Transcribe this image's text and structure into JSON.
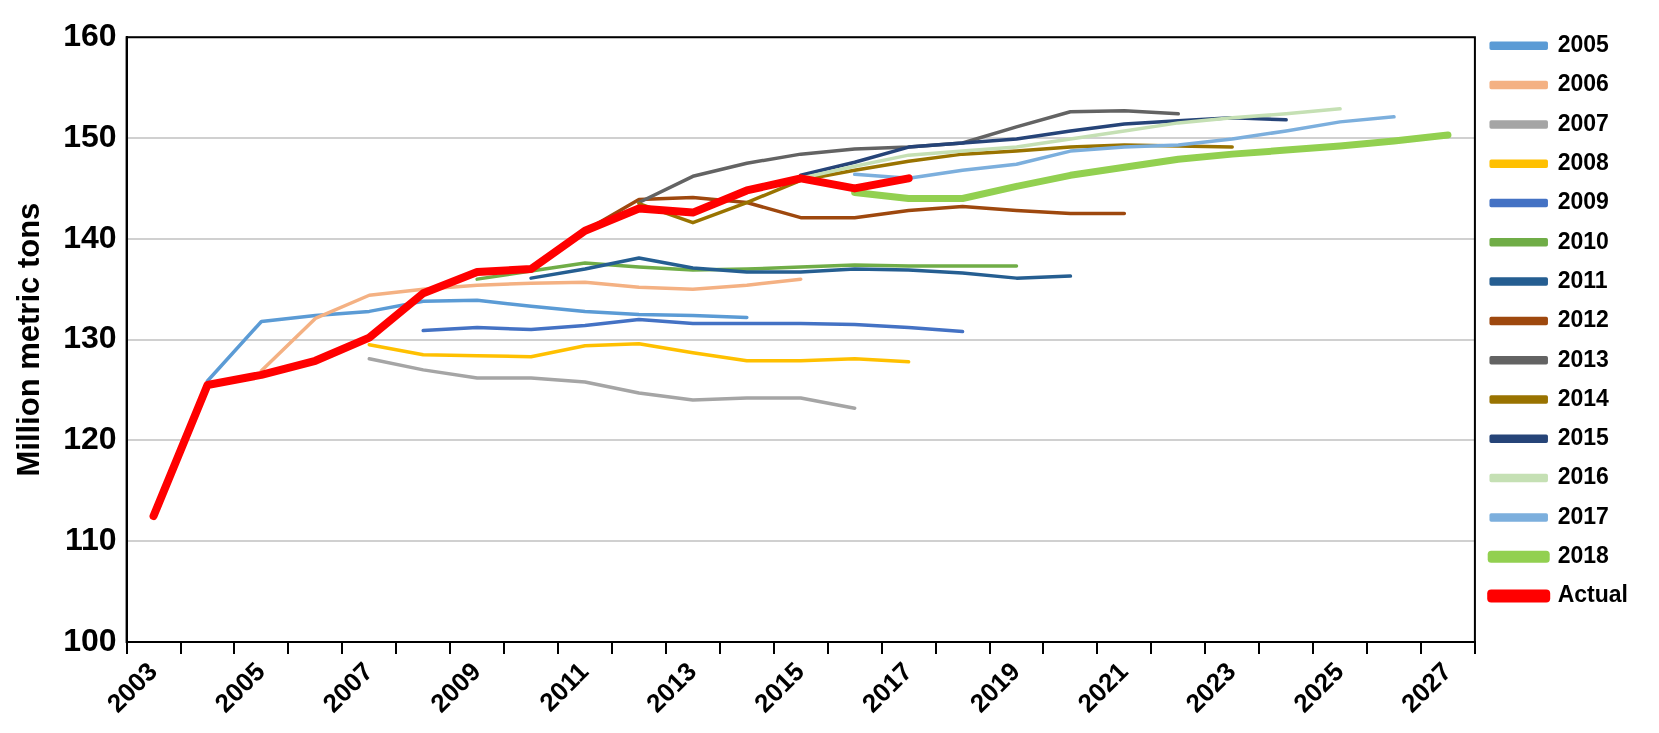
{
  "chart_data": {
    "type": "line",
    "ylabel": "Million metric tons",
    "categories": [
      "2003",
      null,
      "2005",
      null,
      "2007",
      null,
      "2009",
      null,
      "2011",
      null,
      "2013",
      null,
      "2015",
      null,
      "2017",
      null,
      "2019",
      null,
      "2021",
      null,
      "2023",
      null,
      "2025",
      null,
      "2027"
    ],
    "series": [
      {
        "name": "2005",
        "color": "#5b9bd5",
        "values": [
          null,
          125.9,
          131.8,
          132.4,
          132.8,
          133.8,
          133.9,
          133.3,
          132.8,
          132.5,
          132.4,
          132.2,
          null,
          null,
          null,
          null,
          null,
          null,
          null,
          null,
          null,
          null,
          null,
          null,
          null
        ]
      },
      {
        "name": "2006",
        "color": "#f4b183",
        "values": [
          null,
          null,
          126.9,
          132.1,
          134.4,
          135.0,
          135.4,
          135.6,
          135.7,
          135.2,
          135.0,
          135.4,
          136.0,
          null,
          null,
          null,
          null,
          null,
          null,
          null,
          null,
          null,
          null,
          null,
          null
        ]
      },
      {
        "name": "2007",
        "color": "#a5a5a5",
        "values": [
          null,
          null,
          null,
          null,
          128.1,
          127.0,
          126.2,
          126.2,
          125.8,
          124.7,
          124.0,
          124.2,
          124.2,
          123.2,
          null,
          null,
          null,
          null,
          null,
          null,
          null,
          null,
          null,
          null,
          null
        ]
      },
      {
        "name": "2008",
        "color": "#ffc000",
        "values": [
          null,
          null,
          null,
          null,
          129.5,
          128.5,
          128.4,
          128.3,
          129.4,
          129.6,
          128.7,
          127.9,
          127.9,
          128.1,
          127.8,
          null,
          null,
          null,
          null,
          null,
          null,
          null,
          null,
          null,
          null
        ]
      },
      {
        "name": "2009",
        "color": "#4472c4",
        "values": [
          null,
          null,
          null,
          null,
          null,
          130.9,
          131.2,
          131.0,
          131.4,
          132.0,
          131.6,
          131.6,
          131.6,
          131.5,
          131.2,
          130.8,
          null,
          null,
          null,
          null,
          null,
          null,
          null,
          null,
          null
        ]
      },
      {
        "name": "2010",
        "color": "#70ad47",
        "values": [
          null,
          null,
          null,
          null,
          null,
          null,
          136.0,
          136.8,
          137.6,
          137.2,
          136.9,
          137.0,
          137.2,
          137.4,
          137.3,
          137.3,
          137.3,
          null,
          null,
          null,
          null,
          null,
          null,
          null,
          null
        ]
      },
      {
        "name": "2011",
        "color": "#255e91",
        "values": [
          null,
          null,
          null,
          null,
          null,
          null,
          null,
          136.1,
          137.0,
          138.1,
          137.1,
          136.7,
          136.7,
          137.0,
          136.9,
          136.6,
          136.1,
          136.3,
          null,
          null,
          null,
          null,
          null,
          null,
          null
        ]
      },
      {
        "name": "2012",
        "color": "#9e480e",
        "values": [
          null,
          null,
          null,
          null,
          null,
          null,
          null,
          null,
          140.8,
          143.9,
          144.1,
          143.6,
          142.1,
          142.1,
          142.8,
          143.2,
          142.8,
          142.5,
          142.5,
          null,
          null,
          null,
          null,
          null,
          null
        ]
      },
      {
        "name": "2013",
        "color": "#636363",
        "values": [
          null,
          null,
          null,
          null,
          null,
          null,
          null,
          null,
          null,
          143.6,
          146.2,
          147.5,
          148.4,
          148.9,
          149.1,
          149.5,
          151.1,
          152.6,
          152.7,
          152.4,
          null,
          null,
          null,
          null,
          null
        ]
      },
      {
        "name": "2014",
        "color": "#997300",
        "values": [
          null,
          null,
          null,
          null,
          null,
          null,
          null,
          null,
          null,
          143.5,
          141.6,
          143.6,
          145.8,
          146.8,
          147.7,
          148.4,
          148.7,
          149.1,
          149.3,
          149.2,
          149.1,
          null,
          null,
          null,
          null
        ]
      },
      {
        "name": "2015",
        "color": "#264478",
        "values": [
          null,
          null,
          null,
          null,
          null,
          null,
          null,
          null,
          null,
          null,
          null,
          null,
          146.3,
          147.6,
          149.1,
          149.5,
          149.9,
          150.7,
          151.4,
          151.7,
          152.0,
          151.8,
          null,
          null,
          null
        ]
      },
      {
        "name": "2016",
        "color": "#c5e0b4",
        "values": [
          null,
          null,
          null,
          null,
          null,
          null,
          null,
          null,
          null,
          null,
          null,
          null,
          146.0,
          147.2,
          148.3,
          148.7,
          149.1,
          149.9,
          150.7,
          151.5,
          152.0,
          152.4,
          152.9,
          null,
          null
        ]
      },
      {
        "name": "2017",
        "color": "#7cafdd",
        "values": [
          null,
          null,
          null,
          null,
          null,
          null,
          null,
          null,
          null,
          null,
          null,
          null,
          null,
          146.4,
          146.0,
          146.8,
          147.4,
          148.7,
          149.1,
          149.3,
          149.9,
          150.7,
          151.6,
          152.1,
          null
        ]
      },
      {
        "name": "2018",
        "color": "#92d050",
        "values": [
          null,
          null,
          null,
          null,
          null,
          null,
          null,
          null,
          null,
          null,
          null,
          null,
          null,
          144.6,
          144.0,
          144.0,
          145.2,
          146.3,
          147.1,
          147.9,
          148.4,
          148.8,
          149.2,
          149.7,
          150.3
        ]
      },
      {
        "name": "Actual",
        "color": "#ff0000",
        "values": [
          112.5,
          125.5,
          126.5,
          127.9,
          130.2,
          134.6,
          136.7,
          137.0,
          140.8,
          143.0,
          142.6,
          144.8,
          146.0,
          145.0,
          146.0,
          null,
          null,
          null,
          null,
          null,
          null,
          null,
          null,
          null,
          null
        ]
      }
    ],
    "ylim": [
      100,
      160
    ],
    "yticks": [
      100,
      110,
      120,
      130,
      140,
      150,
      160
    ],
    "grid": "y",
    "legend": "right",
    "marker": "none",
    "line_style": "solid"
  }
}
